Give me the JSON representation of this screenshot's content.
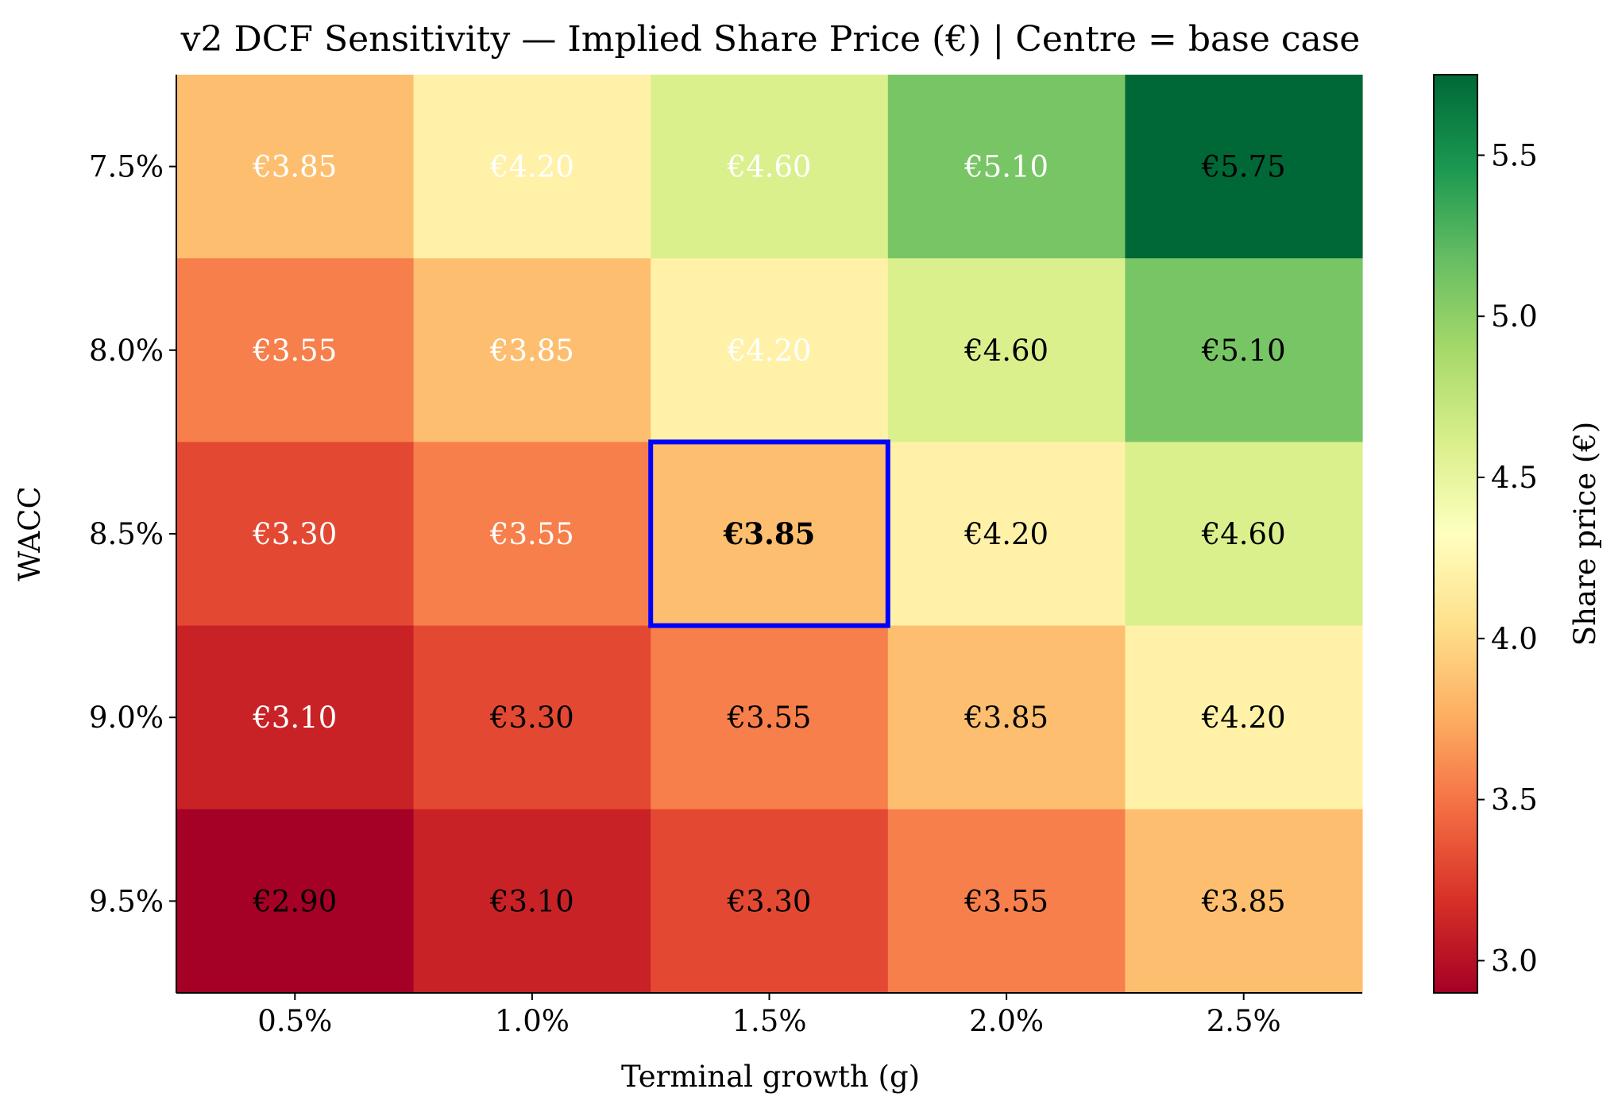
{
  "chart_data": {
    "type": "heatmap",
    "title": "v2 DCF Sensitivity — Implied Share Price (€) | Centre = base case",
    "xlabel": "Terminal growth (g)",
    "ylabel": "WACC",
    "x_categories": [
      "0.5%",
      "1.0%",
      "1.5%",
      "2.0%",
      "2.5%"
    ],
    "y_categories": [
      "7.5%",
      "8.0%",
      "8.5%",
      "9.0%",
      "9.5%"
    ],
    "values": [
      [
        3.85,
        4.2,
        4.6,
        5.1,
        5.75
      ],
      [
        3.55,
        3.85,
        4.2,
        4.6,
        5.1
      ],
      [
        3.3,
        3.55,
        3.85,
        4.2,
        4.6
      ],
      [
        3.1,
        3.3,
        3.55,
        3.85,
        4.2
      ],
      [
        2.9,
        3.1,
        3.3,
        3.55,
        3.85
      ]
    ],
    "cell_labels": [
      [
        "€3.85",
        "€4.20",
        "€4.60",
        "€5.10",
        "€5.75"
      ],
      [
        "€3.55",
        "€3.85",
        "€4.20",
        "€4.60",
        "€5.10"
      ],
      [
        "€3.30",
        "€3.55",
        "€3.85",
        "€4.20",
        "€4.60"
      ],
      [
        "€3.10",
        "€3.30",
        "€3.55",
        "€3.85",
        "€4.20"
      ],
      [
        "€2.90",
        "€3.10",
        "€3.30",
        "€3.55",
        "€3.85"
      ]
    ],
    "label_colors": [
      [
        "#ffffff",
        "#ffffff",
        "#ffffff",
        "#ffffff",
        "#000000"
      ],
      [
        "#ffffff",
        "#ffffff",
        "#ffffff",
        "#000000",
        "#000000"
      ],
      [
        "#ffffff",
        "#ffffff",
        "#000000",
        "#000000",
        "#000000"
      ],
      [
        "#ffffff",
        "#000000",
        "#000000",
        "#000000",
        "#000000"
      ],
      [
        "#000000",
        "#000000",
        "#000000",
        "#000000",
        "#000000"
      ]
    ],
    "highlight_cell": {
      "row": 2,
      "col": 2,
      "color": "#0000ff"
    },
    "colormap": "RdYlGn",
    "colorbar": {
      "label": "Share price (€)",
      "range": [
        2.9,
        5.75
      ],
      "ticks": [
        3.0,
        3.5,
        4.0,
        4.5,
        5.0,
        5.5
      ],
      "tick_labels": [
        "3.0",
        "3.5",
        "4.0",
        "4.5",
        "5.0",
        "5.5"
      ]
    },
    "grid": false,
    "legend": "none"
  }
}
